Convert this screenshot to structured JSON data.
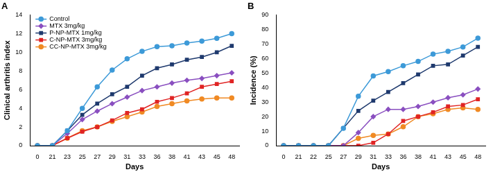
{
  "chart_data": [
    {
      "type": "line",
      "title": "A",
      "x_label": "Days",
      "y_label": "Clinical arthritis index",
      "categories": [
        "0",
        "21",
        "23",
        "25",
        "27",
        "29",
        "31",
        "33",
        "36",
        "38",
        "41",
        "43",
        "45",
        "48"
      ],
      "ylim": [
        0,
        14
      ],
      "yticks": [
        0,
        2,
        4,
        6,
        8,
        10,
        12,
        14
      ],
      "grid": false,
      "legend": "top-left",
      "series": [
        {
          "name": "Control",
          "color": "#3d9ad8",
          "marker": "circle",
          "values": [
            0,
            0,
            1.6,
            4,
            6.3,
            8.1,
            9.3,
            10.1,
            10.6,
            10.7,
            11,
            11.2,
            11.5,
            12
          ]
        },
        {
          "name": "MTX 3mg/kg",
          "color": "#8a4fc0",
          "marker": "diamond",
          "values": [
            0,
            0,
            1.3,
            2.8,
            3.7,
            4.5,
            5.2,
            5.9,
            6.3,
            6.7,
            7,
            7.2,
            7.5,
            7.8
          ]
        },
        {
          "name": "P-NP-MTX 1mg/kg",
          "color": "#1f3a6e",
          "marker": "square",
          "values": [
            0,
            0,
            1.6,
            3.3,
            4.5,
            5.5,
            6.3,
            7.5,
            8.3,
            8.7,
            9.2,
            9.5,
            10,
            10.7
          ]
        },
        {
          "name": "C-NP-MTX 3mg/kg",
          "color": "#e02424",
          "marker": "square",
          "values": [
            0,
            0,
            0.8,
            1.5,
            2,
            2.7,
            3.5,
            3.9,
            4.7,
            5.1,
            5.6,
            6.3,
            6.6,
            6.9
          ]
        },
        {
          "name": "CC-NP-MTX 3mg/kg",
          "color": "#f08a24",
          "marker": "circle",
          "values": [
            0,
            0,
            0.8,
            1.6,
            2,
            2.6,
            3.1,
            3.6,
            4.2,
            4.5,
            4.8,
            5,
            5.1,
            5.1
          ]
        }
      ]
    },
    {
      "type": "line",
      "title": "B",
      "x_label": "Days",
      "y_label": "Incidence (%)",
      "categories": [
        "0",
        "21",
        "22",
        "25",
        "27",
        "29",
        "31",
        "33",
        "36",
        "38",
        "41",
        "43",
        "45",
        "48"
      ],
      "ylim": [
        0,
        90
      ],
      "yticks": [
        0,
        10,
        20,
        30,
        40,
        50,
        60,
        70,
        80,
        90
      ],
      "grid": false,
      "series": [
        {
          "color": "#3d9ad8",
          "marker": "circle",
          "values": [
            0,
            0,
            0,
            0,
            12,
            34,
            48,
            51,
            55,
            58,
            63,
            65,
            68,
            74
          ]
        },
        {
          "color": "#8a4fc0",
          "marker": "diamond",
          "values": [
            0,
            0,
            0,
            0,
            0,
            9,
            20,
            25,
            25,
            27,
            30,
            33,
            35,
            39
          ]
        },
        {
          "color": "#1f3a6e",
          "marker": "square",
          "values": [
            0,
            0,
            0,
            0,
            12,
            24,
            31,
            37,
            43,
            49,
            55,
            56,
            62,
            68
          ]
        },
        {
          "color": "#e02424",
          "marker": "square",
          "values": [
            0,
            0,
            0,
            0,
            0,
            0,
            2,
            8,
            17,
            20,
            23,
            27,
            28,
            32
          ]
        },
        {
          "color": "#f08a24",
          "marker": "circle",
          "values": [
            0,
            0,
            0,
            0,
            0,
            5,
            7,
            8,
            13,
            20,
            22,
            25,
            26,
            25
          ]
        }
      ]
    }
  ]
}
